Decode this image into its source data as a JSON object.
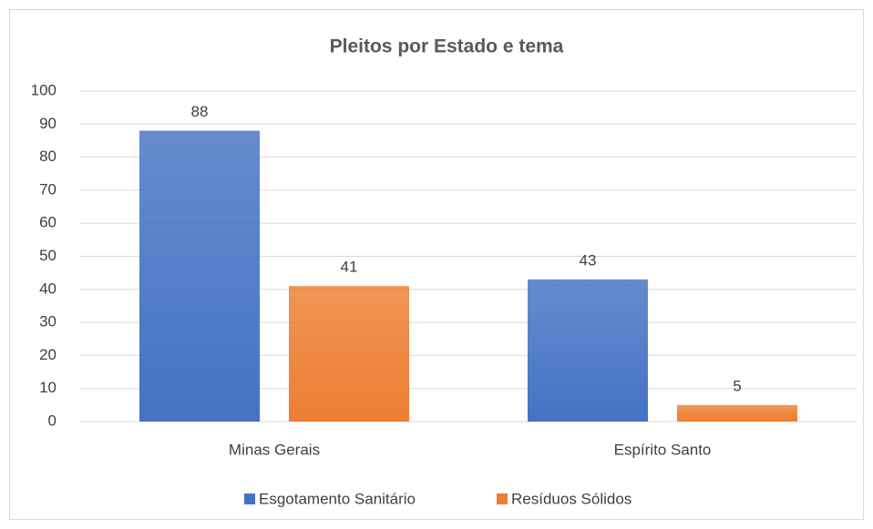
{
  "chart_data": {
    "type": "bar",
    "title": "Pleitos por Estado e tema",
    "categories": [
      "Minas Gerais",
      "Espírito Santo"
    ],
    "series": [
      {
        "name": "Esgotamento Sanitário",
        "color": "#4472c4",
        "values": [
          88,
          43
        ]
      },
      {
        "name": "Resíduos Sólidos",
        "color": "#ed7d31",
        "values": [
          41,
          5
        ]
      }
    ],
    "ylim": [
      0,
      100
    ],
    "yticks": [
      0,
      10,
      20,
      30,
      40,
      50,
      60,
      70,
      80,
      90,
      100
    ],
    "grid": true,
    "legend": "bottom"
  }
}
